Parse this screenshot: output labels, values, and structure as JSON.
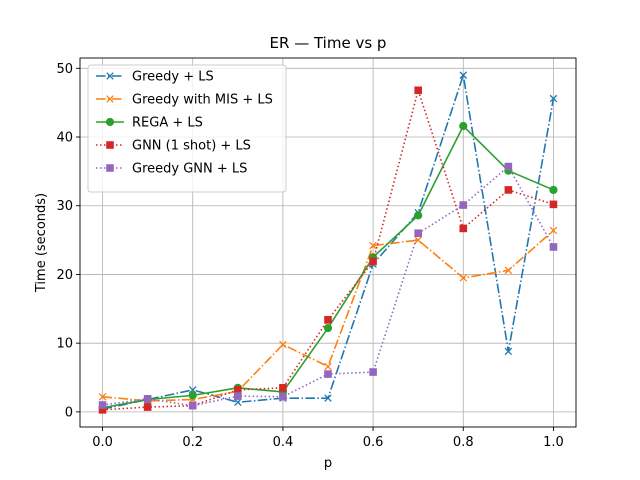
{
  "chart_data": {
    "type": "line",
    "title": "ER — Time vs p",
    "xlabel": "p",
    "ylabel": "Time (seconds)",
    "xlim": [
      -0.05,
      1.05
    ],
    "ylim": [
      -2.2,
      51.5
    ],
    "xticks": [
      0.0,
      0.2,
      0.4,
      0.6,
      0.8,
      1.0
    ],
    "xtick_labels": [
      "0.0",
      "0.2",
      "0.4",
      "0.6",
      "0.8",
      "1.0"
    ],
    "yticks": [
      0,
      10,
      20,
      30,
      40,
      50
    ],
    "ytick_labels": [
      "0",
      "10",
      "20",
      "30",
      "40",
      "50"
    ],
    "grid": true,
    "legend_position": "top-left",
    "x": [
      0.0,
      0.1,
      0.2,
      0.3,
      0.4,
      0.5,
      0.6,
      0.7,
      0.8,
      0.9,
      1.0
    ],
    "series": [
      {
        "name": "Greedy + LS",
        "color": "#1f77b4",
        "linestyle": "dashdot",
        "marker": "x",
        "values": [
          0.4,
          1.8,
          3.2,
          1.4,
          2.0,
          2.0,
          21.5,
          29.0,
          49.0,
          8.8,
          45.6
        ]
      },
      {
        "name": "Greedy with MIS + LS",
        "color": "#ff7f0e",
        "linestyle": "dashdot",
        "marker": "x",
        "values": [
          2.2,
          1.6,
          1.8,
          3.0,
          9.8,
          6.6,
          24.2,
          25.0,
          19.5,
          20.6,
          26.4
        ]
      },
      {
        "name": "REGA + LS",
        "color": "#2ca02c",
        "linestyle": "solid",
        "marker": "circle",
        "values": [
          0.6,
          1.8,
          2.4,
          3.5,
          2.9,
          12.2,
          22.5,
          28.6,
          41.6,
          35.1,
          32.3
        ]
      },
      {
        "name": "GNN (1 shot) + LS",
        "color": "#d62728",
        "linestyle": "dotted",
        "marker": "square",
        "values": [
          0.3,
          0.7,
          0.9,
          3.2,
          3.5,
          13.4,
          21.9,
          46.8,
          26.7,
          32.3,
          30.2
        ]
      },
      {
        "name": "Greedy GNN + LS",
        "color": "#9467bd",
        "linestyle": "dotted",
        "marker": "square",
        "values": [
          1.0,
          1.9,
          0.9,
          2.3,
          2.2,
          5.5,
          5.8,
          26.0,
          30.1,
          35.7,
          24.0
        ]
      }
    ]
  }
}
